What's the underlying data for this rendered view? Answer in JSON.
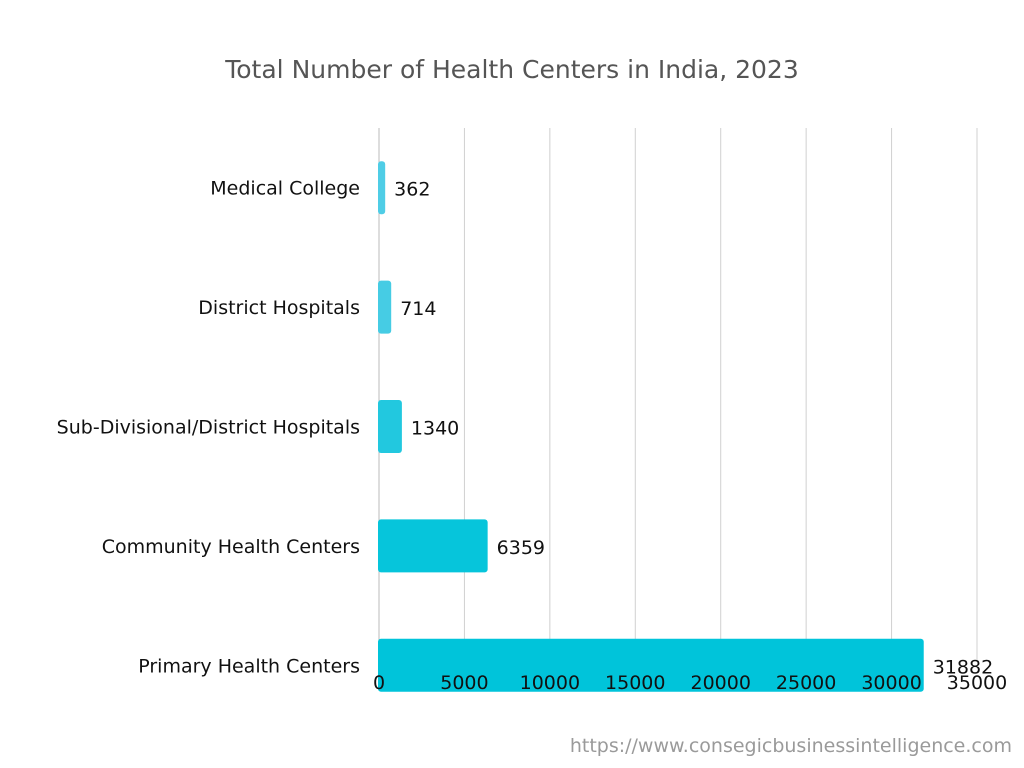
{
  "chart_data": {
    "type": "bar",
    "orientation": "horizontal",
    "title": "Total Number of Health Centers in India, 2023",
    "categories": [
      "Medical College",
      "District Hospitals",
      "Sub-Divisional/District Hospitals",
      "Community Health Centers",
      "Primary Health Centers"
    ],
    "values": [
      362,
      714,
      1340,
      6359,
      31882
    ],
    "data_labels": [
      "362",
      "714",
      "1340",
      "6359",
      "31882"
    ],
    "xlim": [
      0,
      35000
    ],
    "xticks": [
      0,
      5000,
      10000,
      15000,
      20000,
      25000,
      30000,
      35000
    ],
    "xtick_labels": [
      "0",
      "5000",
      "10000",
      "15000",
      "20000",
      "25000",
      "30000",
      "35000"
    ],
    "xlabel": "",
    "ylabel": "",
    "grid": true,
    "legend": "none",
    "bar_colors": [
      "#4fcde6",
      "#46cce4",
      "#22c8df",
      "#06c5db",
      "#00c4da"
    ]
  },
  "footer": {
    "source_url": "https://www.consegicbusinessintelligence.com"
  }
}
